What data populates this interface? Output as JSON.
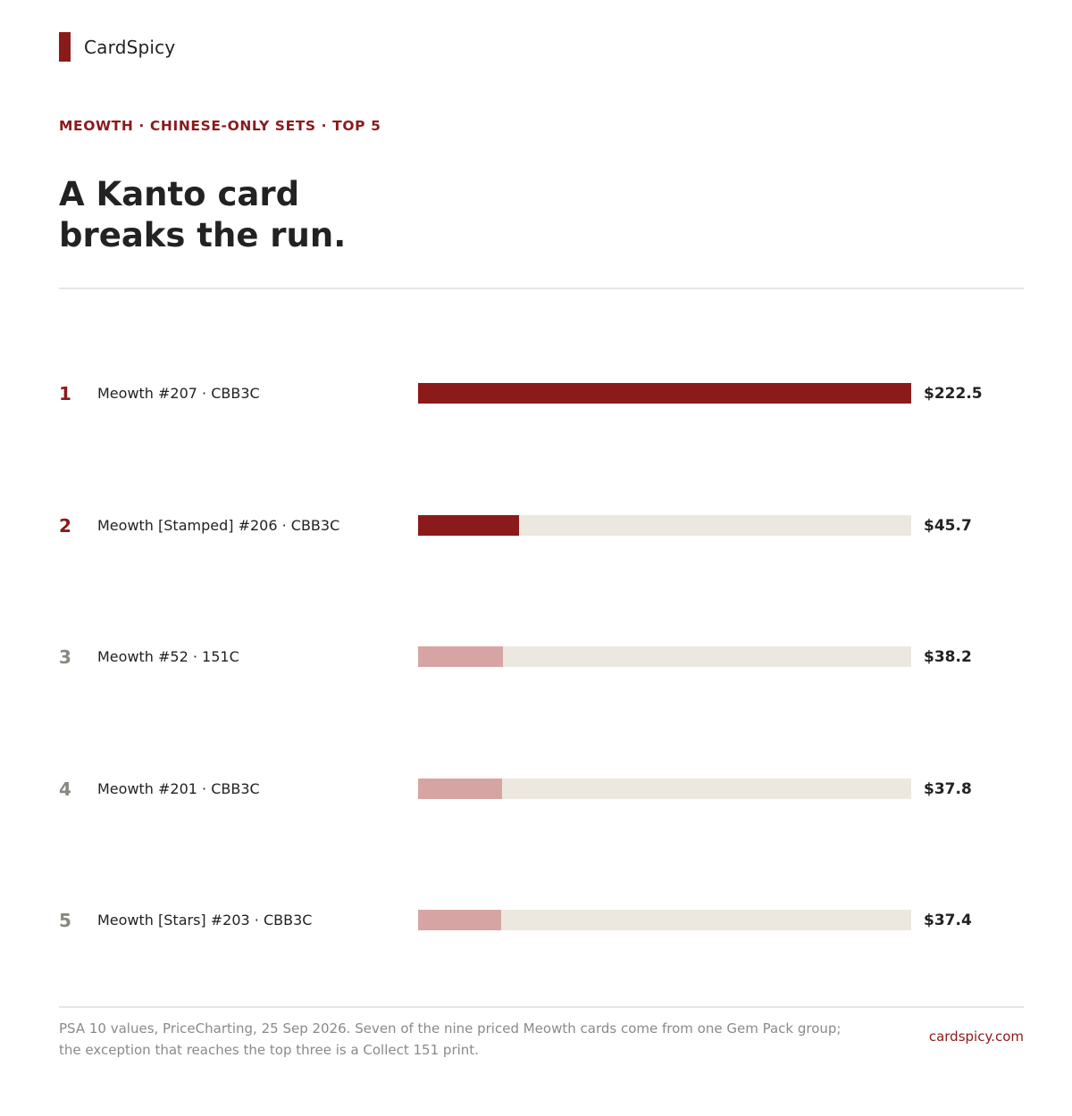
{
  "brand": {
    "name": "CardSpicy"
  },
  "kicker": "MEOWTH · CHINESE-ONLY SETS · TOP 5",
  "headline": {
    "line1": "A Kanto card",
    "line2": "breaks the run."
  },
  "colors": {
    "accent": "#8b1a1a",
    "muted_bar": "#d6a5a3",
    "track": "#ece8e0",
    "rank_muted": "#888880"
  },
  "chart_data": {
    "type": "bar",
    "orientation": "horizontal",
    "title": "A Kanto card breaks the run.",
    "categories": [
      "Meowth #207 · CBB3C",
      "Meowth [Stamped] #206 · CBB3C",
      "Meowth #52 · 151C",
      "Meowth #201 · CBB3C",
      "Meowth [Stars] #203 · CBB3C"
    ],
    "ranks": [
      "1",
      "2",
      "3",
      "4",
      "5"
    ],
    "values": [
      222.5,
      45.7,
      38.2,
      37.8,
      37.4
    ],
    "value_labels": [
      "$222.5",
      "$45.7",
      "$38.2",
      "$37.8",
      "$37.4"
    ],
    "highlight": [
      true,
      true,
      false,
      false,
      false
    ],
    "xlim": [
      0,
      222.5
    ],
    "grid": false
  },
  "footer": {
    "note": "PSA 10 values, PriceCharting, 25 Sep 2026. Seven of the nine priced Meowth cards come from one Gem Pack group; the exception that reaches the top three is a Collect 151 print.",
    "site": "cardspicy.com"
  }
}
